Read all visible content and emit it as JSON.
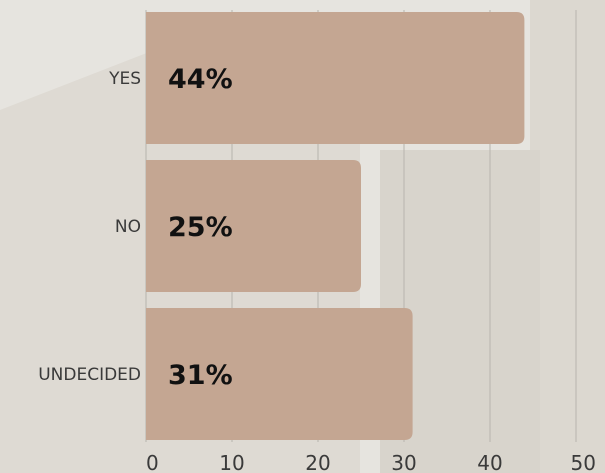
{
  "colors": {
    "background": "#e6e4df",
    "bar": "#c4a692",
    "grid": "#b7b4ae"
  },
  "chart_data": {
    "type": "bar",
    "orientation": "horizontal",
    "categories": [
      "YES",
      "NO",
      "UNDECIDED"
    ],
    "values": [
      44,
      25,
      31
    ],
    "data_labels": [
      "44%",
      "25%",
      "31%"
    ],
    "xlim": [
      0,
      50
    ],
    "x_ticks": [
      0,
      10,
      20,
      30,
      40,
      50
    ],
    "x_tick_labels": [
      "0",
      "10",
      "20",
      "30",
      "40",
      "50"
    ],
    "grid": true,
    "legend": "none"
  }
}
